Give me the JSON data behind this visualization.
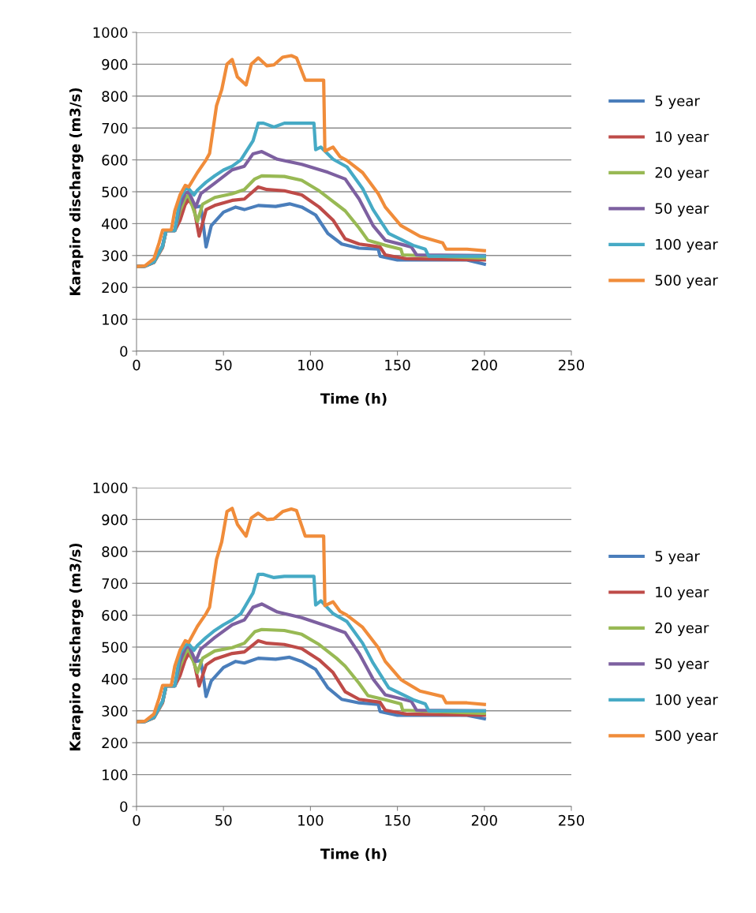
{
  "chart_data": [
    {
      "type": "line",
      "xlabel": "Time (h)",
      "ylabel": "Karapiro discharge (m3/s)",
      "xlim": [
        0,
        250
      ],
      "xticks": [
        0,
        50,
        100,
        150,
        200,
        250
      ],
      "ylim": [
        0,
        1000
      ],
      "yticks": [
        0,
        100,
        200,
        300,
        400,
        500,
        600,
        700,
        800,
        900,
        1000
      ],
      "grid": "y",
      "legend": "right",
      "series": [
        {
          "name": "5 year",
          "color": "#4a7ebb",
          "x": [
            0,
            5,
            10,
            15,
            17,
            22,
            25,
            28,
            30,
            34,
            37,
            40,
            43,
            50,
            57,
            62,
            70,
            80,
            88,
            95,
            103,
            110,
            118,
            128,
            139,
            140,
            150,
            190,
            200
          ],
          "values": [
            265,
            267,
            280,
            330,
            378,
            378,
            420,
            470,
            480,
            452,
            455,
            327,
            394,
            436,
            452,
            444,
            457,
            454,
            462,
            452,
            427,
            369,
            336,
            323,
            320,
            298,
            286,
            286,
            273
          ]
        },
        {
          "name": "10 year",
          "color": "#be4b48",
          "x": [
            0,
            5,
            10,
            15,
            17,
            22,
            25,
            28,
            30,
            33,
            36,
            40,
            45,
            55,
            62,
            70,
            75,
            85,
            95,
            105,
            113,
            120,
            128,
            140,
            143,
            155,
            200
          ],
          "values": [
            265,
            267,
            278,
            325,
            378,
            378,
            410,
            460,
            475,
            450,
            361,
            444,
            457,
            473,
            477,
            515,
            507,
            503,
            490,
            452,
            411,
            352,
            336,
            327,
            302,
            290,
            286
          ]
        },
        {
          "name": "20 year",
          "color": "#98b954",
          "x": [
            0,
            5,
            10,
            15,
            17,
            22,
            25,
            28,
            30,
            35,
            38,
            45,
            55,
            62,
            68,
            72,
            85,
            95,
            105,
            115,
            120,
            128,
            133,
            143,
            152,
            153,
            200
          ],
          "values": [
            265,
            267,
            278,
            328,
            378,
            378,
            440,
            480,
            490,
            407,
            461,
            482,
            494,
            507,
            540,
            550,
            548,
            536,
            503,
            461,
            440,
            386,
            348,
            332,
            320,
            302,
            292
          ]
        },
        {
          "name": "50 year",
          "color": "#7d60a0",
          "x": [
            0,
            5,
            10,
            15,
            17,
            22,
            25,
            28,
            30,
            34,
            37,
            45,
            55,
            62,
            67,
            72,
            81,
            95,
            110,
            120,
            128,
            136,
            143,
            158,
            161,
            200
          ],
          "values": [
            265,
            267,
            279,
            330,
            378,
            378,
            455,
            495,
            500,
            452,
            494,
            527,
            569,
            580,
            619,
            626,
            602,
            586,
            561,
            540,
            477,
            394,
            348,
            327,
            302,
            300
          ]
        },
        {
          "name": "100 year",
          "color": "#46aac5",
          "x": [
            0,
            5,
            10,
            15,
            17,
            22,
            25,
            28,
            30,
            33,
            35,
            40,
            45,
            50,
            55,
            60,
            67,
            70,
            73,
            79,
            85,
            102,
            103,
            106,
            113,
            121,
            130,
            136,
            145,
            159,
            166,
            168,
            200
          ],
          "values": [
            265,
            267,
            280,
            330,
            378,
            378,
            480,
            508,
            510,
            490,
            505,
            530,
            550,
            568,
            580,
            600,
            660,
            715,
            715,
            703,
            715,
            715,
            632,
            640,
            602,
            578,
            510,
            444,
            369,
            332,
            320,
            298,
            298
          ]
        },
        {
          "name": "500 year",
          "color": "#f08c3a",
          "x": [
            0,
            5,
            10,
            13,
            15,
            20,
            22,
            25,
            28,
            30,
            35,
            40,
            42,
            46,
            49,
            52,
            55,
            58,
            63,
            66,
            70,
            75,
            79,
            84,
            89,
            92,
            97,
            107.6,
            108.3,
            113,
            117,
            121,
            130,
            139,
            143,
            152,
            163,
            176,
            178,
            190,
            200
          ],
          "values": [
            265,
            268,
            290,
            340,
            380,
            380,
            440,
            490,
            520,
            515,
            560,
            600,
            620,
            770,
            820,
            900,
            915,
            860,
            835,
            900,
            920,
            895,
            898,
            922,
            927,
            920,
            850,
            850,
            628,
            640,
            610,
            598,
            560,
            494,
            452,
            394,
            360,
            340,
            320,
            320,
            315
          ]
        }
      ]
    },
    {
      "type": "line",
      "xlabel": "Time (h)",
      "ylabel": "Karapiro discharge (m3/s)",
      "xlim": [
        0,
        250
      ],
      "xticks": [
        0,
        50,
        100,
        150,
        200,
        250
      ],
      "ylim": [
        0,
        1000
      ],
      "yticks": [
        0,
        100,
        200,
        300,
        400,
        500,
        600,
        700,
        800,
        900,
        1000
      ],
      "grid": "y",
      "legend": "right",
      "series": [
        {
          "name": "5 year",
          "color": "#4a7ebb",
          "x": [
            0,
            5,
            10,
            15,
            17,
            22,
            25,
            28,
            30,
            34,
            37,
            40,
            43,
            50,
            57,
            62,
            70,
            80,
            88,
            95,
            103,
            110,
            118,
            128,
            139,
            140,
            150,
            190,
            200
          ],
          "values": [
            265,
            267,
            280,
            330,
            378,
            378,
            420,
            470,
            485,
            455,
            458,
            345,
            394,
            436,
            455,
            450,
            465,
            462,
            468,
            455,
            430,
            372,
            336,
            325,
            320,
            298,
            286,
            286,
            275
          ]
        },
        {
          "name": "10 year",
          "color": "#be4b48",
          "x": [
            0,
            5,
            10,
            15,
            17,
            22,
            25,
            28,
            30,
            33,
            36,
            40,
            45,
            55,
            62,
            70,
            75,
            85,
            95,
            105,
            113,
            120,
            128,
            140,
            143,
            155,
            200
          ],
          "values": [
            265,
            267,
            278,
            325,
            378,
            378,
            410,
            460,
            480,
            455,
            378,
            444,
            462,
            480,
            485,
            520,
            512,
            508,
            495,
            460,
            420,
            360,
            336,
            327,
            302,
            290,
            286
          ]
        },
        {
          "name": "20 year",
          "color": "#98b954",
          "x": [
            0,
            5,
            10,
            15,
            17,
            22,
            25,
            28,
            30,
            35,
            38,
            45,
            55,
            62,
            68,
            72,
            85,
            95,
            105,
            115,
            120,
            128,
            133,
            143,
            152,
            153,
            200
          ],
          "values": [
            265,
            267,
            278,
            328,
            378,
            378,
            440,
            480,
            495,
            420,
            465,
            488,
            498,
            512,
            548,
            555,
            552,
            540,
            508,
            465,
            440,
            386,
            348,
            335,
            322,
            302,
            292
          ]
        },
        {
          "name": "50 year",
          "color": "#7d60a0",
          "x": [
            0,
            5,
            10,
            15,
            17,
            22,
            25,
            28,
            30,
            34,
            37,
            45,
            55,
            62,
            67,
            72,
            81,
            95,
            110,
            120,
            128,
            136,
            143,
            158,
            161,
            200
          ],
          "values": [
            265,
            267,
            279,
            330,
            378,
            378,
            455,
            495,
            505,
            455,
            494,
            530,
            570,
            585,
            625,
            635,
            610,
            592,
            565,
            545,
            480,
            400,
            350,
            330,
            302,
            300
          ]
        },
        {
          "name": "100 year",
          "color": "#46aac5",
          "x": [
            0,
            5,
            10,
            15,
            17,
            22,
            25,
            28,
            30,
            33,
            35,
            40,
            45,
            50,
            55,
            60,
            67,
            70,
            73,
            79,
            85,
            102,
            103,
            106,
            113,
            121,
            130,
            136,
            145,
            159,
            166,
            168,
            200
          ],
          "values": [
            265,
            267,
            280,
            330,
            378,
            378,
            480,
            505,
            510,
            490,
            505,
            530,
            552,
            570,
            585,
            605,
            670,
            728,
            728,
            718,
            722,
            722,
            632,
            645,
            605,
            580,
            512,
            450,
            372,
            335,
            322,
            300,
            300
          ]
        },
        {
          "name": "500 year",
          "color": "#f08c3a",
          "x": [
            0,
            5,
            10,
            13,
            15,
            20,
            22,
            25,
            28,
            30,
            35,
            40,
            42,
            46,
            49,
            52,
            55,
            58,
            63,
            66,
            70,
            75,
            79,
            84,
            89,
            92,
            97,
            107.6,
            108.3,
            113,
            117,
            121,
            130,
            139,
            143,
            152,
            163,
            176,
            178,
            190,
            200
          ],
          "values": [
            265,
            268,
            290,
            340,
            380,
            380,
            440,
            490,
            520,
            515,
            565,
            605,
            625,
            775,
            830,
            925,
            935,
            885,
            848,
            905,
            920,
            900,
            902,
            925,
            933,
            928,
            848,
            848,
            630,
            642,
            612,
            600,
            562,
            498,
            455,
            398,
            362,
            345,
            325,
            325,
            320
          ]
        }
      ]
    }
  ]
}
